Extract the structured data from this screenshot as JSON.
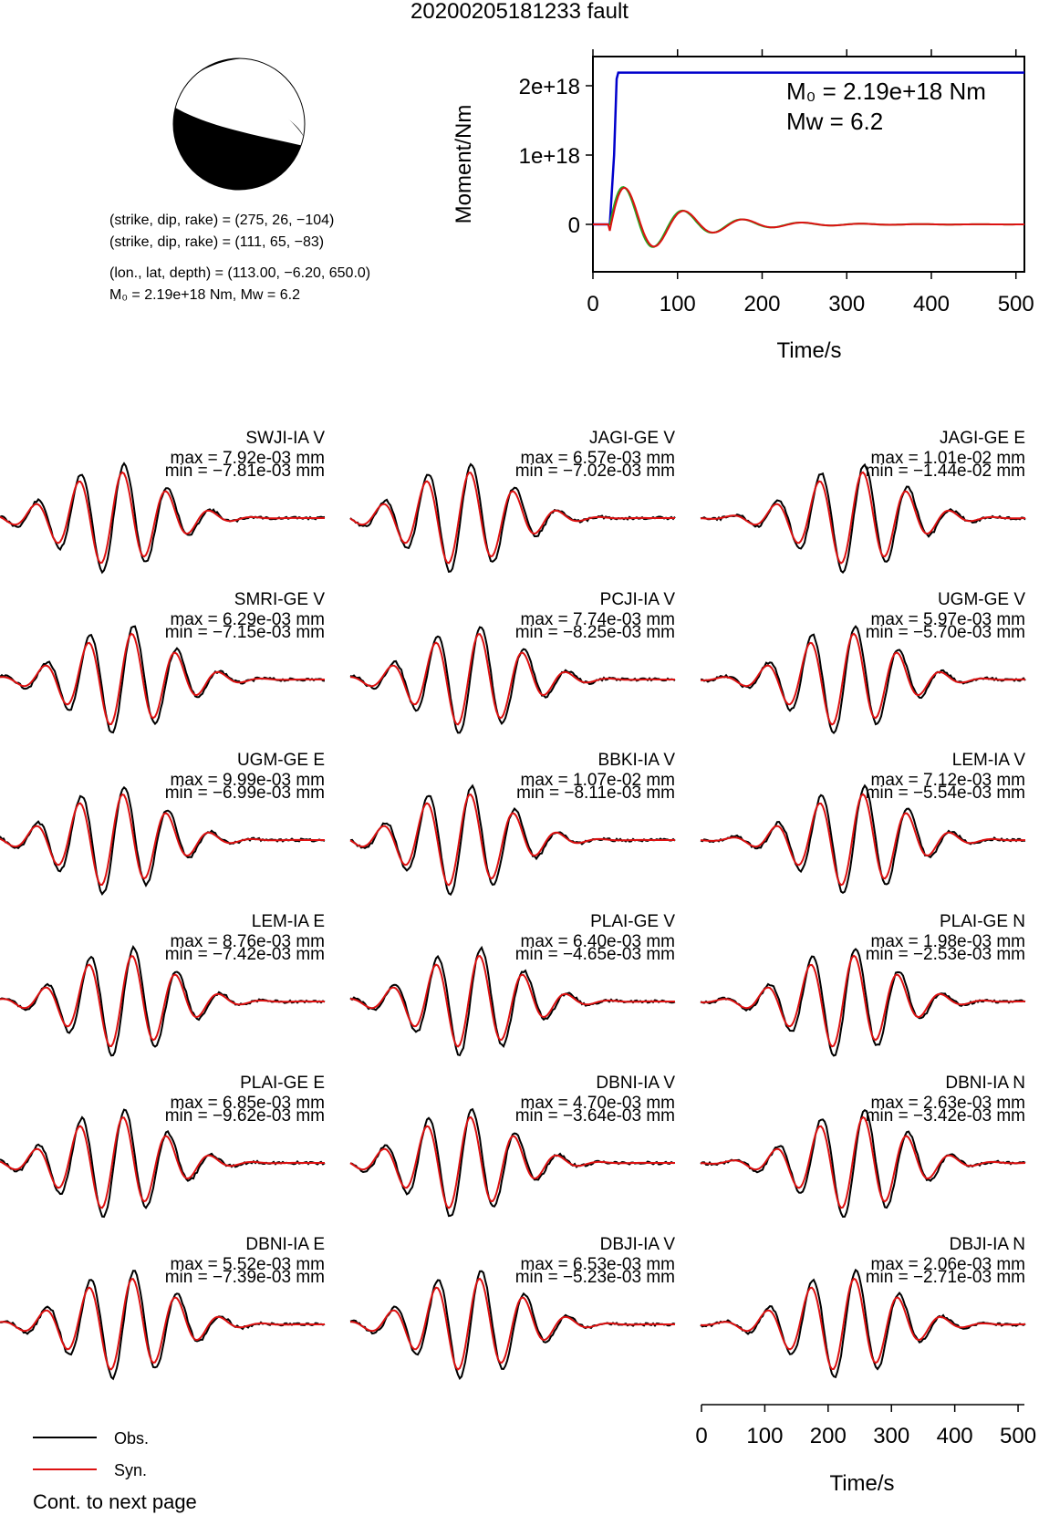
{
  "title": "20200205181233 fault",
  "mechanism": {
    "nodal_plane_1": "(strike, dip, rake) = (275, 26, −104)",
    "nodal_plane_2": "(strike, dip, rake) = (111, 65, −83)",
    "location": "(lon., lat, depth) = (113.00, −6.20, 650.0)",
    "moment_line": "M₀ = 2.19e+18 Nm, Mw = 6.2"
  },
  "colors": {
    "observed": "#000000",
    "synthetic": "#dd1111",
    "moment": "#0000cc",
    "stf": "#22aa22"
  },
  "chart_data": [
    {
      "type": "line",
      "id": "moment-rate",
      "ylabel": "Moment/Nm",
      "xlabel": "Time/s",
      "xlim": [
        0,
        510
      ],
      "x_ticks": [
        0,
        100,
        200,
        300,
        400,
        500
      ],
      "y_ticks": [
        {
          "value": 0,
          "label": "0"
        },
        {
          "value": 1e+18,
          "label": "1e+18"
        },
        {
          "value": 2e+18,
          "label": "2e+18"
        }
      ],
      "annotation_m0": "M₀ = 2.19e+18 Nm",
      "annotation_mw": "Mw = 6.2",
      "cumulative_moment": {
        "t": [
          0,
          20,
          25,
          28,
          30,
          510
        ],
        "value": [
          0,
          0,
          1e+18,
          2.1e+18,
          2.19e+18,
          2.19e+18
        ]
      }
    },
    {
      "type": "line",
      "id": "waveforms",
      "xlabel": "Time/s",
      "xlim": [
        0,
        510
      ],
      "x_ticks": [
        0,
        100,
        200,
        300,
        400,
        500
      ],
      "legend": {
        "observed": "Obs.",
        "synthetic": "Syn."
      },
      "footer": "Cont. to next page",
      "stations": [
        {
          "name": "SWJI-IA V",
          "max": "max = 7.92e-03 mm",
          "min": "min = −7.81e-03 mm"
        },
        {
          "name": "JAGI-GE V",
          "max": "max = 6.57e-03 mm",
          "min": "min = −7.02e-03 mm"
        },
        {
          "name": "JAGI-GE E",
          "max": "max = 1.01e-02 mm",
          "min": "min = −1.44e-02 mm"
        },
        {
          "name": "SMRI-GE V",
          "max": "max = 6.29e-03 mm",
          "min": "min = −7.15e-03 mm"
        },
        {
          "name": "PCJI-IA V",
          "max": "max = 7.74e-03 mm",
          "min": "min = −8.25e-03 mm"
        },
        {
          "name": "UGM-GE V",
          "max": "max = 5.97e-03 mm",
          "min": "min = −5.70e-03 mm"
        },
        {
          "name": "UGM-GE E",
          "max": "max = 9.99e-03 mm",
          "min": "min = −6.99e-03 mm"
        },
        {
          "name": "BBKI-IA V",
          "max": "max = 1.07e-02 mm",
          "min": "min = −8.11e-03 mm"
        },
        {
          "name": "LEM-IA V",
          "max": "max = 7.12e-03 mm",
          "min": "min = −5.54e-03 mm"
        },
        {
          "name": "LEM-IA E",
          "max": "max = 8.76e-03 mm",
          "min": "min = −7.42e-03 mm"
        },
        {
          "name": "PLAI-GE V",
          "max": "max = 6.40e-03 mm",
          "min": "min = −4.65e-03 mm"
        },
        {
          "name": "PLAI-GE N",
          "max": "max = 1.98e-03 mm",
          "min": "min = −2.53e-03 mm"
        },
        {
          "name": "PLAI-GE E",
          "max": "max = 6.85e-03 mm",
          "min": "min = −9.62e-03 mm"
        },
        {
          "name": "DBNI-IA V",
          "max": "max = 4.70e-03 mm",
          "min": "min = −3.64e-03 mm"
        },
        {
          "name": "DBNI-IA N",
          "max": "max = 2.63e-03 mm",
          "min": "min = −3.42e-03 mm"
        },
        {
          "name": "DBNI-IA E",
          "max": "max = 5.52e-03 mm",
          "min": "min = −7.39e-03 mm"
        },
        {
          "name": "DBJI-IA V",
          "max": "max = 6.53e-03 mm",
          "min": "min = −5.23e-03 mm"
        },
        {
          "name": "DBJI-IA N",
          "max": "max = 2.06e-03 mm",
          "min": "min = −2.71e-03 mm"
        }
      ]
    }
  ]
}
